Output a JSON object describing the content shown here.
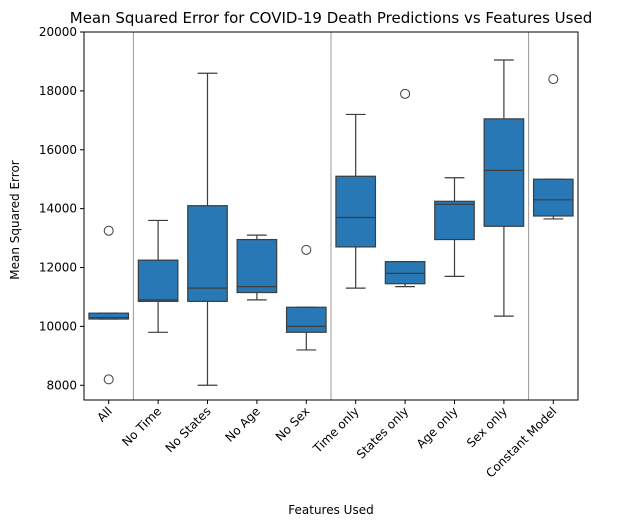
{
  "chart_data": {
    "type": "box",
    "title": "Mean Squared Error for COVID-19 Death Predictions vs Features Used",
    "xlabel": "Features Used",
    "ylabel": "Mean Squared Error",
    "ylim": [
      7500,
      20000
    ],
    "yticks": [
      8000,
      10000,
      12000,
      14000,
      16000,
      18000,
      20000
    ],
    "grid": false,
    "box_color": "#2878b5",
    "line_color": "#3d3d3d",
    "separator_color": "#999999",
    "separators_after": [
      "All",
      "No Sex",
      "Sex only"
    ],
    "categories": [
      "All",
      "No Time",
      "No States",
      "No Age",
      "No Sex",
      "Time only",
      "States only",
      "Age only",
      "Sex only",
      "Constant Model"
    ],
    "boxes": [
      {
        "whisker_low": 10250,
        "q1": 10250,
        "median": 10300,
        "q3": 10450,
        "whisker_high": 10450,
        "outliers": [
          13250,
          8200
        ]
      },
      {
        "whisker_low": 9800,
        "q1": 10850,
        "median": 10900,
        "q3": 12250,
        "whisker_high": 13600,
        "outliers": []
      },
      {
        "whisker_low": 8000,
        "q1": 10850,
        "median": 11300,
        "q3": 14100,
        "whisker_high": 18600,
        "outliers": []
      },
      {
        "whisker_low": 10900,
        "q1": 11150,
        "median": 11350,
        "q3": 12950,
        "whisker_high": 13100,
        "outliers": []
      },
      {
        "whisker_low": 9200,
        "q1": 9800,
        "median": 10000,
        "q3": 10650,
        "whisker_high": 10650,
        "outliers": [
          12600
        ]
      },
      {
        "whisker_low": 11300,
        "q1": 12700,
        "median": 13700,
        "q3": 15100,
        "whisker_high": 17200,
        "outliers": []
      },
      {
        "whisker_low": 11350,
        "q1": 11450,
        "median": 11800,
        "q3": 12200,
        "whisker_high": 12200,
        "outliers": [
          17900
        ]
      },
      {
        "whisker_low": 11700,
        "q1": 12950,
        "median": 14150,
        "q3": 14250,
        "whisker_high": 15050,
        "outliers": []
      },
      {
        "whisker_low": 10350,
        "q1": 13400,
        "median": 15300,
        "q3": 17050,
        "whisker_high": 19050,
        "outliers": []
      },
      {
        "whisker_low": 13650,
        "q1": 13750,
        "median": 14300,
        "q3": 15000,
        "whisker_high": 15000,
        "outliers": [
          18400
        ]
      }
    ]
  }
}
